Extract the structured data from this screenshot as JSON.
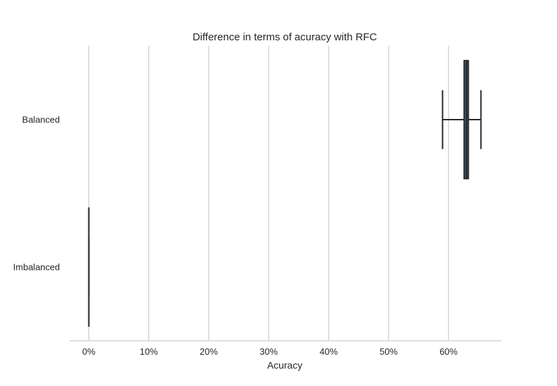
{
  "chart_data": {
    "type": "boxplot",
    "orientation": "horizontal",
    "title": "Difference in terms of acuracy with RFC",
    "xlabel": "Acuracy",
    "ylabel": "",
    "x_tick_values": [
      0,
      10,
      20,
      30,
      40,
      50,
      60
    ],
    "x_tick_labels": [
      "0%",
      "10%",
      "20%",
      "30%",
      "40%",
      "50%",
      "60%"
    ],
    "xlim": [
      -3.2,
      68.8
    ],
    "grid": "vertical",
    "categories": [
      "Balanced",
      "Imbalanced"
    ],
    "boxes": [
      {
        "category": "Balanced",
        "whisker_low": 59.0,
        "q1": 62.6,
        "median": 63.0,
        "q3": 63.3,
        "whisker_high": 65.4,
        "color": "#1f5f8b"
      },
      {
        "category": "Imbalanced",
        "whisker_low": 0.0,
        "q1": 0.0,
        "median": 0.0,
        "q3": 0.0,
        "whisker_high": 0.0,
        "color": "#1f5f8b"
      }
    ]
  },
  "colors": {
    "grid": "#cccccc",
    "axis": "#cccccc",
    "box_edge": "#2a2a2a",
    "text": "#262626"
  }
}
